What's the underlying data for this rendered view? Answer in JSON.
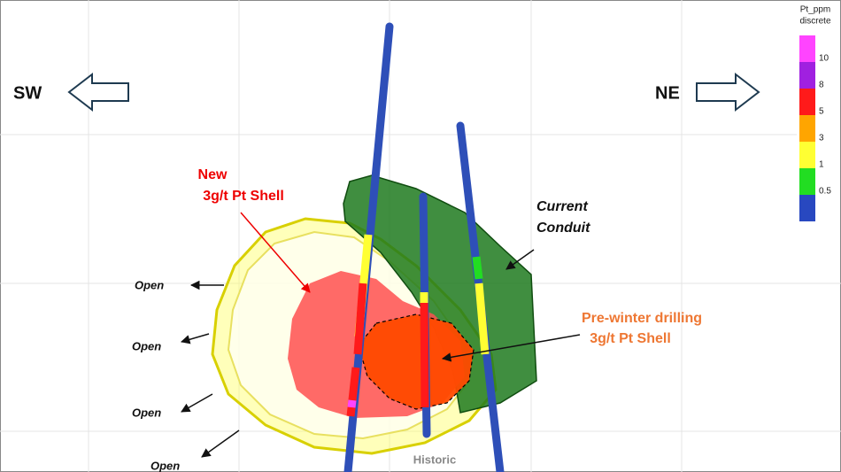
{
  "directions": {
    "left": "SW",
    "right": "NE"
  },
  "labels": {
    "new_shell": [
      "New",
      "3g/t Pt Shell"
    ],
    "current_conduit": [
      "Current",
      "Conduit"
    ],
    "pre_winter_shell": [
      "Pre-winter drilling",
      "3g/t Pt Shell"
    ],
    "open": [
      "Open",
      "Open",
      "Open",
      "Open"
    ],
    "historic": "Historic"
  },
  "legend": {
    "title": [
      "Pt_ppm",
      "discrete"
    ],
    "colors": [
      "#ff44ff",
      "#a020e0",
      "#ff1a1a",
      "#ffa500",
      "#ffff33",
      "#22dd22",
      "#2848c0"
    ],
    "thresholds": [
      10,
      8,
      5,
      3,
      1,
      0.5
    ]
  }
}
